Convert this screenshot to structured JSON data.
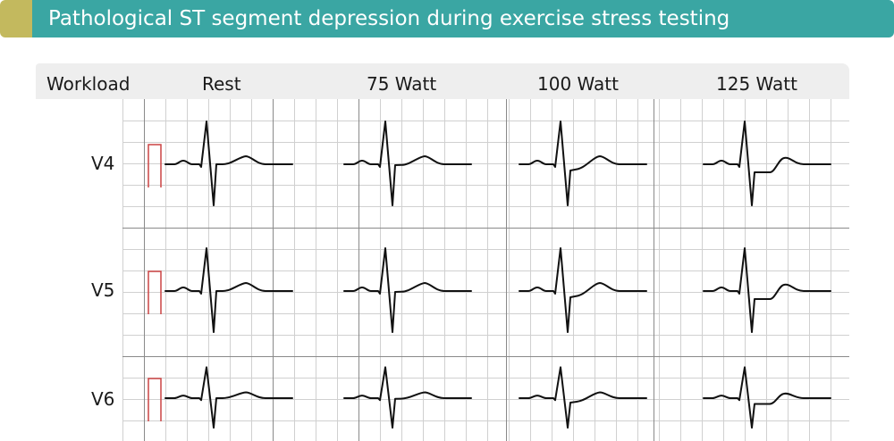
{
  "title": "Pathological ST segment depression during exercise stress testing",
  "header": {
    "workload_label": "Workload",
    "columns": [
      "Rest",
      "75 Watt",
      "100 Watt",
      "125 Watt"
    ]
  },
  "leads": [
    "V4",
    "V5",
    "V6"
  ],
  "colors": {
    "title_bar": "#3aa6a3",
    "title_accent": "#c3b95e",
    "header_bg": "#eeeeee",
    "grid_minor": "#d0d0d0",
    "grid_major": "#8a8a8a",
    "calibration": "#cc4444",
    "trace": "#111111"
  }
}
